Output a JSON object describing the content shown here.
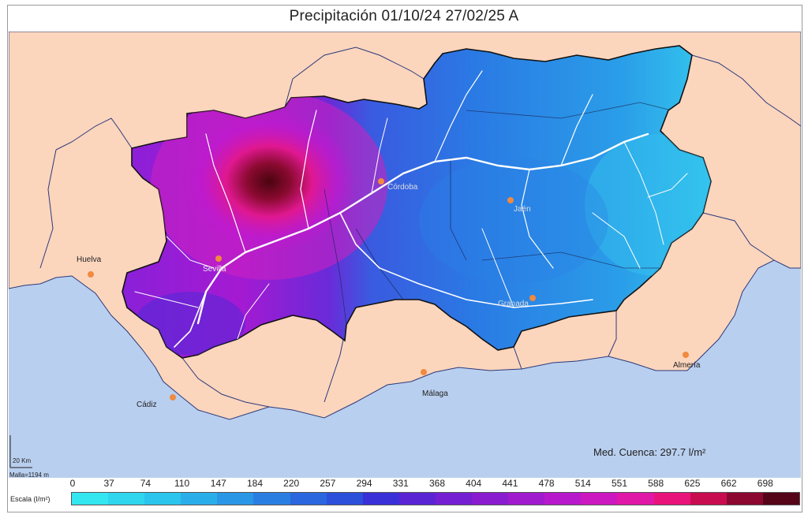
{
  "title": "Precipitación 01/10/24 27/02/25 A",
  "cities": [
    {
      "name": "Huelva"
    },
    {
      "name": "Sevilla"
    },
    {
      "name": "Córdoba"
    },
    {
      "name": "Jaén"
    },
    {
      "name": "Granada"
    },
    {
      "name": "Almería"
    },
    {
      "name": "Málaga"
    },
    {
      "name": "Cádiz"
    }
  ],
  "scale_bar": {
    "km_label": "20 Km",
    "malla_label": "Malla=1194 m"
  },
  "mean_label": "Med. Cuenca: 297.7 l/m²",
  "legend": {
    "title": "Escala (l/m²)",
    "values": [
      "0",
      "37",
      "74",
      "110",
      "147",
      "184",
      "220",
      "257",
      "294",
      "331",
      "368",
      "404",
      "441",
      "478",
      "514",
      "551",
      "588",
      "625",
      "662",
      "698"
    ],
    "colors": [
      "#33e6f0",
      "#2fd6ee",
      "#2bc4ec",
      "#2aaeea",
      "#2a96e6",
      "#2a7ee2",
      "#2a66de",
      "#2c50da",
      "#3a30d8",
      "#5a24d4",
      "#7420d2",
      "#8a1cd0",
      "#a01ace",
      "#b818cc",
      "#cc18c0",
      "#e018a8",
      "#e8147c",
      "#c80c50",
      "#8c0830",
      "#560418"
    ]
  },
  "colors": {
    "sea": "#b9cfef",
    "land": "#fcd5bd",
    "border": "#2a3a7a"
  }
}
